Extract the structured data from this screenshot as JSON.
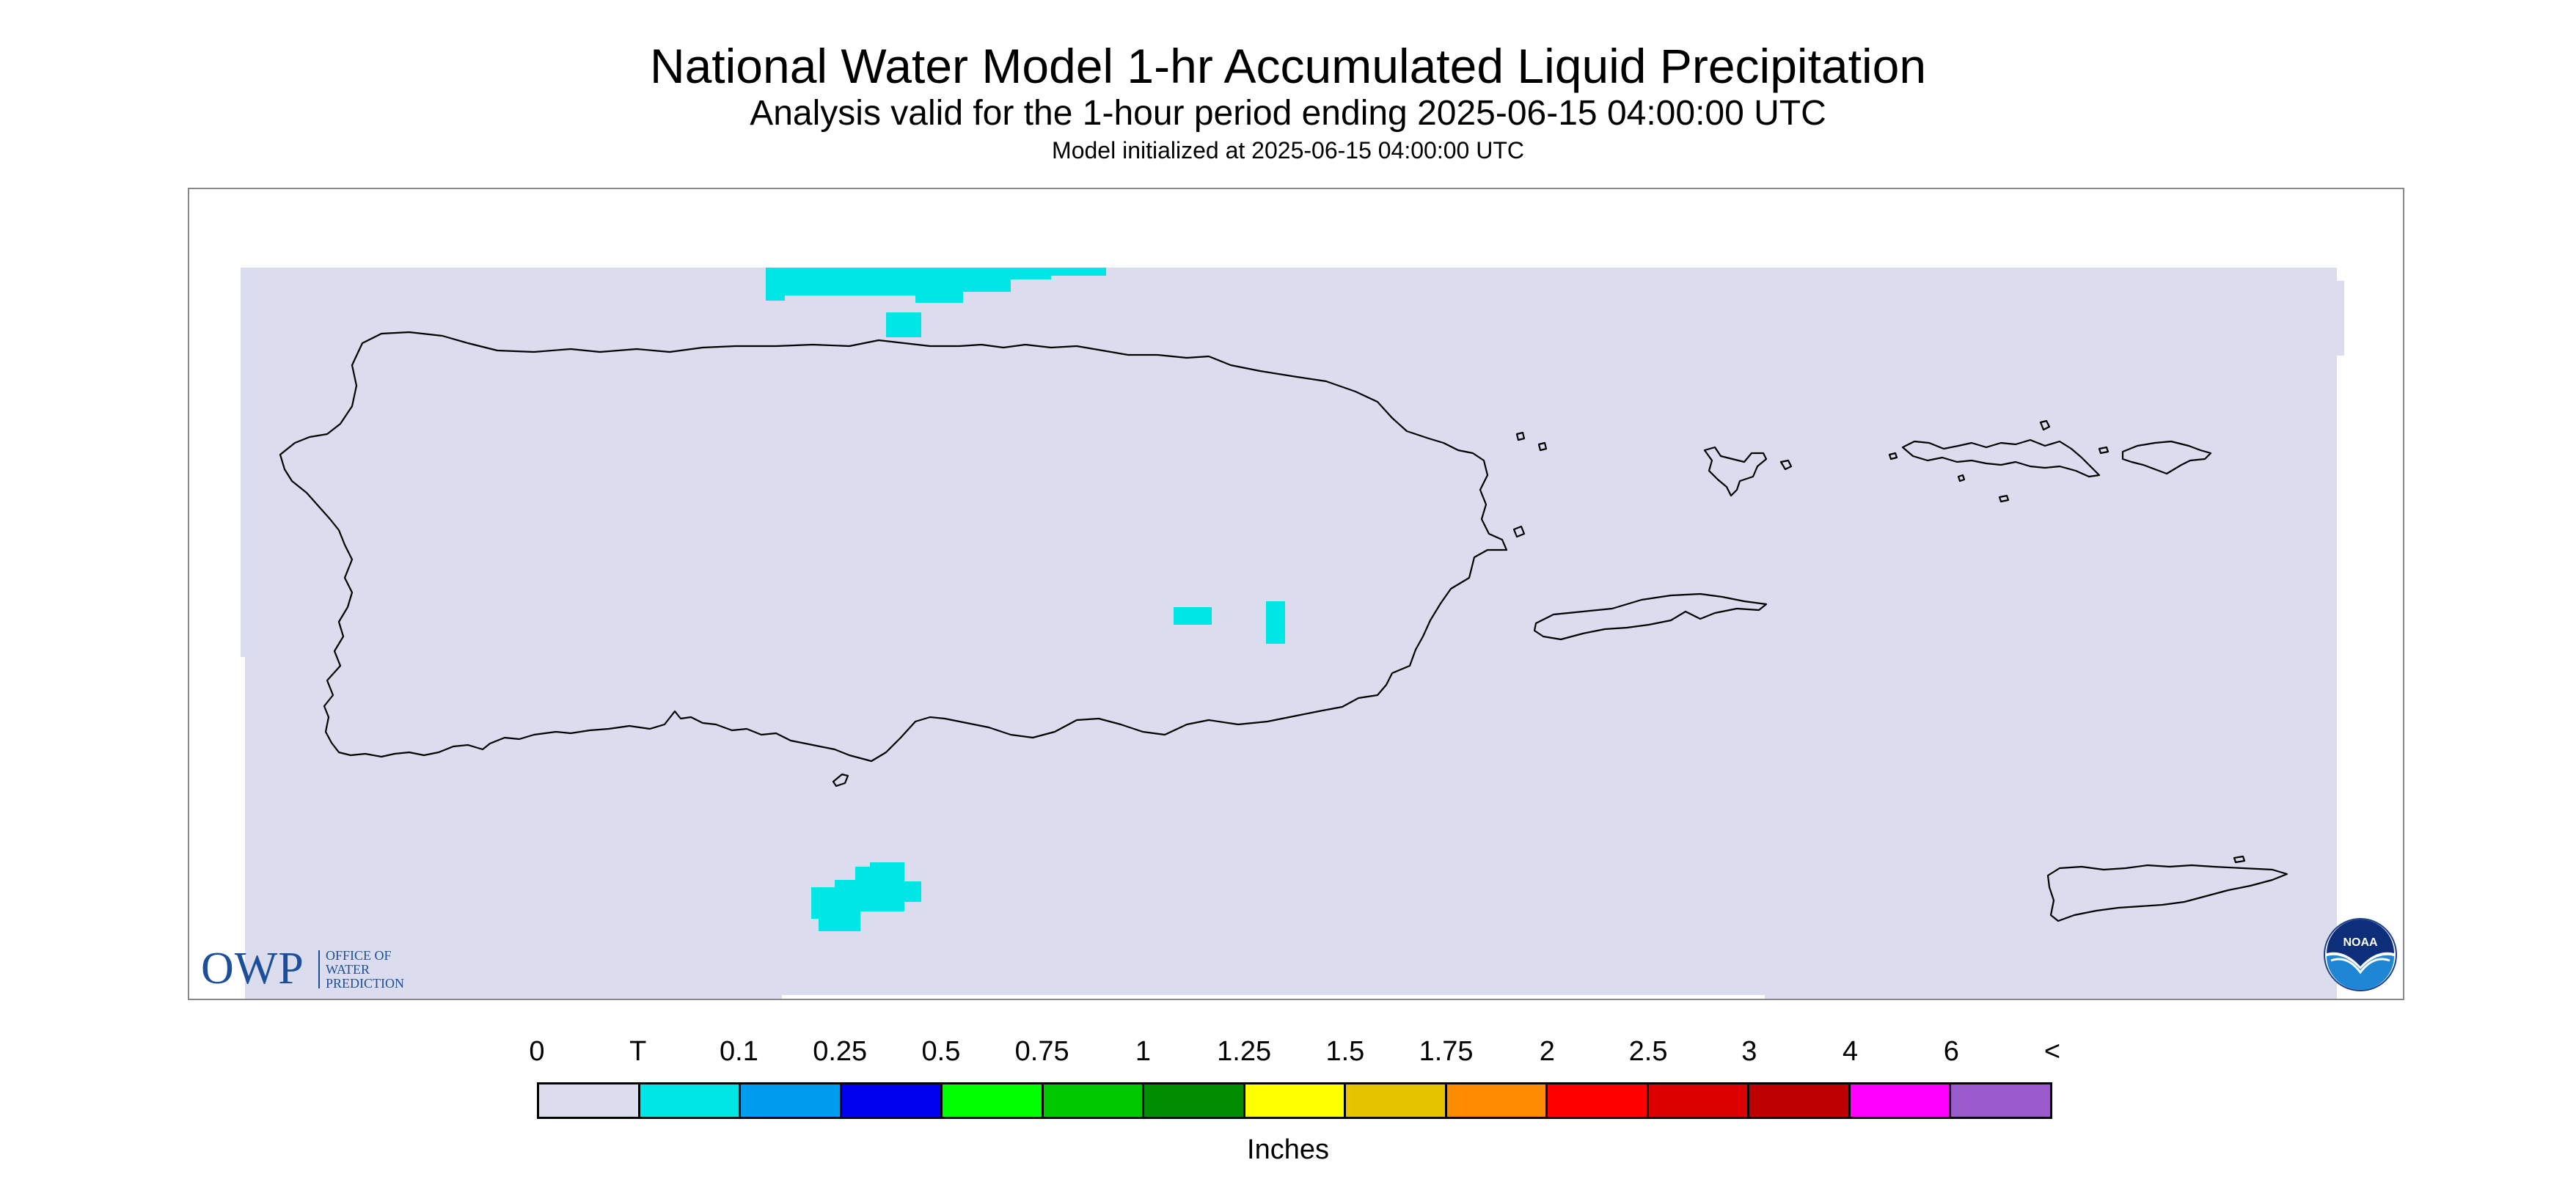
{
  "title": "National Water Model 1-hr Accumulated Liquid Precipitation",
  "subtitle": "Analysis valid for the 1-hour period ending 2025-06-15 04:00:00 UTC",
  "init_text": "Model initialized at 2025-06-15 04:00:00 UTC",
  "logos": {
    "owp_big": "OWP",
    "owp_line1": "OFFICE OF",
    "owp_line2": "WATER",
    "owp_line3": "PREDICTION",
    "noaa": "NOAA"
  },
  "colors": {
    "domain_fill": "#dcdcef",
    "coast": "#000000",
    "precip_trace": "#00e5e5"
  },
  "legend": {
    "units": "Inches",
    "labels": [
      "0",
      "T",
      "0.1",
      "0.25",
      "0.5",
      "0.75",
      "1",
      "1.25",
      "1.5",
      "1.75",
      "2",
      "2.5",
      "3",
      "4",
      "6",
      "<"
    ],
    "colors": [
      "#dcdcef",
      "#00e5e5",
      "#009cf0",
      "#0000ee",
      "#00ff00",
      "#00c800",
      "#008c00",
      "#ffff00",
      "#e6c300",
      "#ff8c00",
      "#ff0000",
      "#dc0000",
      "#be0000",
      "#ff00ff",
      "#9a5acc"
    ]
  }
}
